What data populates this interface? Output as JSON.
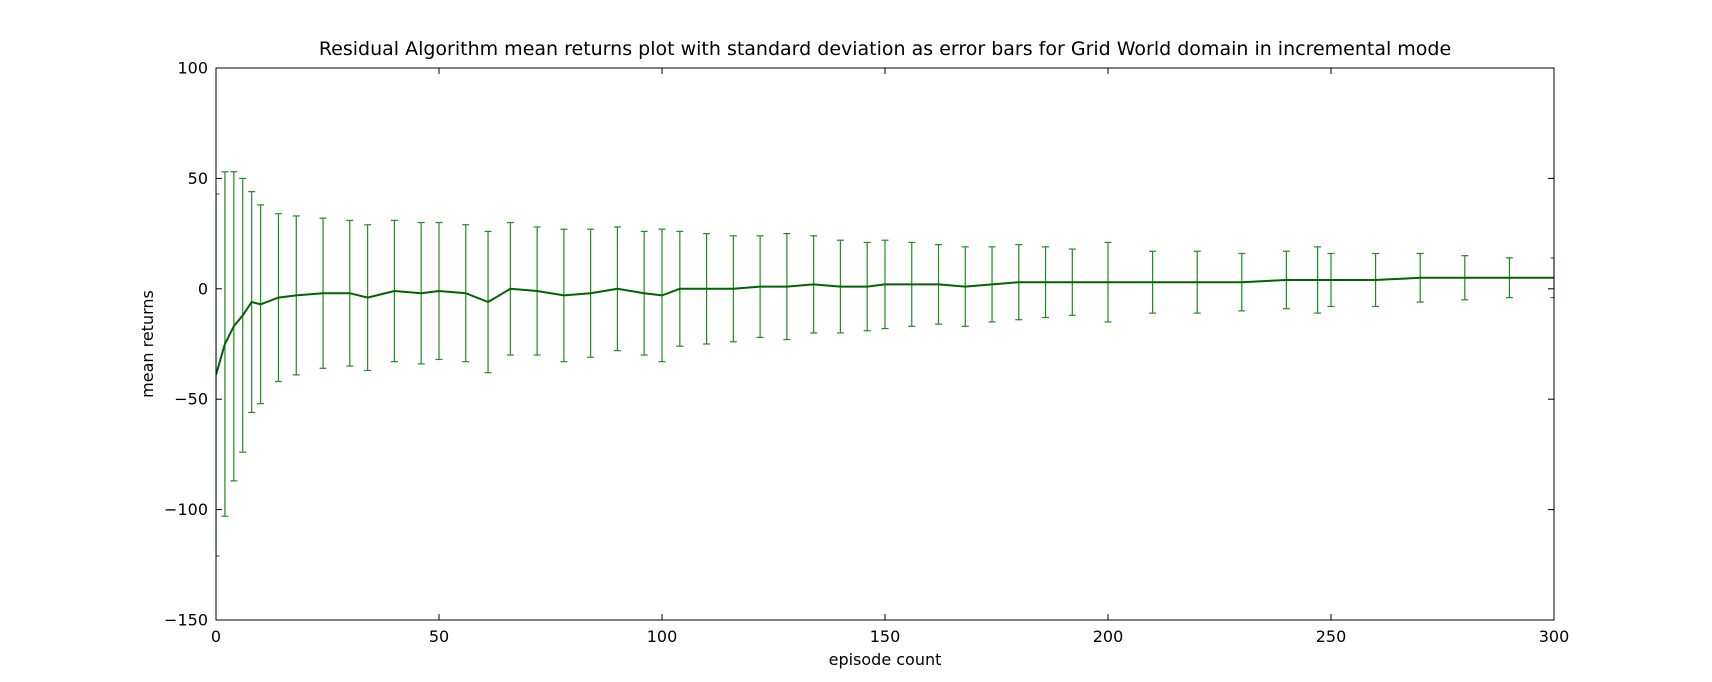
{
  "chart_data": {
    "type": "line",
    "title": "Residual Algorithm mean returns plot with standard deviation as error bars for Grid World domain in incremental mode",
    "xlabel": "episode count",
    "ylabel": "mean returns",
    "xlim": [
      0,
      300
    ],
    "ylim": [
      -150,
      100
    ],
    "xticks": [
      0,
      50,
      100,
      150,
      200,
      250,
      300
    ],
    "yticks": [
      -150,
      -100,
      -50,
      0,
      50,
      100
    ],
    "xtick_labels": [
      "0",
      "50",
      "100",
      "150",
      "200",
      "250",
      "300"
    ],
    "ytick_labels": [
      "−150",
      "−100",
      "−50",
      "0",
      "50",
      "100"
    ],
    "grid": false,
    "series": [
      {
        "color": "#006400",
        "error_bar_color": "#228b22",
        "x": [
          0,
          2,
          4,
          6,
          8,
          10,
          14,
          18,
          24,
          30,
          34,
          40,
          46,
          50,
          56,
          61,
          66,
          72,
          78,
          84,
          90,
          96,
          100,
          104,
          110,
          116,
          122,
          128,
          134,
          140,
          146,
          150,
          156,
          162,
          168,
          174,
          180,
          186,
          192,
          200,
          210,
          220,
          230,
          240,
          247,
          250,
          260,
          270,
          280,
          290,
          300
        ],
        "y": [
          -39,
          -25,
          -17,
          -12,
          -6,
          -7,
          -4,
          -3,
          -2,
          -2,
          -4,
          -1,
          -2,
          -1,
          -2,
          -6,
          0,
          -1,
          -3,
          -2,
          0,
          -2,
          -3,
          0,
          0,
          0,
          1,
          1,
          2,
          1,
          1,
          2,
          2,
          2,
          1,
          2,
          3,
          3,
          3,
          3,
          3,
          3,
          3,
          4,
          4,
          4,
          4,
          5,
          5,
          5,
          5
        ],
        "error": [
          82,
          78,
          70,
          62,
          50,
          45,
          38,
          36,
          34,
          33,
          33,
          32,
          32,
          31,
          31,
          32,
          30,
          29,
          30,
          29,
          28,
          28,
          30,
          26,
          25,
          24,
          23,
          24,
          22,
          21,
          20,
          20,
          19,
          18,
          18,
          17,
          17,
          16,
          15,
          18,
          14,
          14,
          13,
          13,
          15,
          12,
          12,
          11,
          10,
          9,
          9
        ]
      }
    ]
  }
}
